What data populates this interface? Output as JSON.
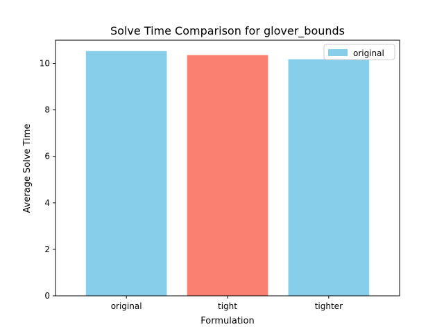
{
  "chart_data": {
    "type": "bar",
    "title": "Solve Time Comparison for glover_bounds",
    "xlabel": "Formulation",
    "ylabel": "Average Solve Time",
    "categories": [
      "original",
      "tight",
      "tighter"
    ],
    "values": [
      10.53,
      10.36,
      10.18
    ],
    "bar_colors": [
      "#87ceeb",
      "#fa8072",
      "#87ceeb"
    ],
    "ylim": [
      0,
      11
    ],
    "yticks": [
      0,
      2,
      4,
      6,
      8,
      10
    ],
    "grid": false,
    "legend": {
      "placement": "top-right",
      "entries": [
        {
          "label": "original",
          "color": "#87ceeb"
        }
      ]
    }
  }
}
